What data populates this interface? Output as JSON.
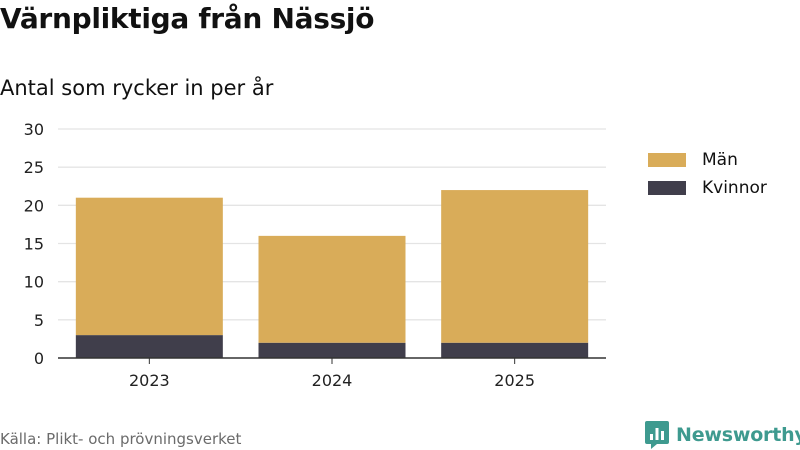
{
  "title": "Värnpliktiga från Nässjö",
  "subtitle": "Antal som rycker in per år",
  "source": "Källa: Plikt- och prövningsverket",
  "brand": "Newsworthy",
  "colors": {
    "man": "#d9ac59",
    "kvinnor": "#403e4b",
    "brand": "#3e9a8f"
  },
  "chart_data": {
    "type": "bar",
    "stacked": true,
    "title": "Värnpliktiga från Nässjö",
    "subtitle": "Antal som rycker in per år",
    "xlabel": "",
    "ylabel": "",
    "categories": [
      "2023",
      "2024",
      "2025"
    ],
    "series": [
      {
        "name": "Kvinnor",
        "values": [
          3,
          2,
          2
        ]
      },
      {
        "name": "Män",
        "values": [
          18,
          14,
          20
        ]
      }
    ],
    "ylim": [
      0,
      30
    ],
    "yticks": [
      0,
      5,
      10,
      15,
      20,
      25,
      30
    ],
    "legend": [
      "Män",
      "Kvinnor"
    ],
    "legend_position": "right",
    "grid": true
  }
}
